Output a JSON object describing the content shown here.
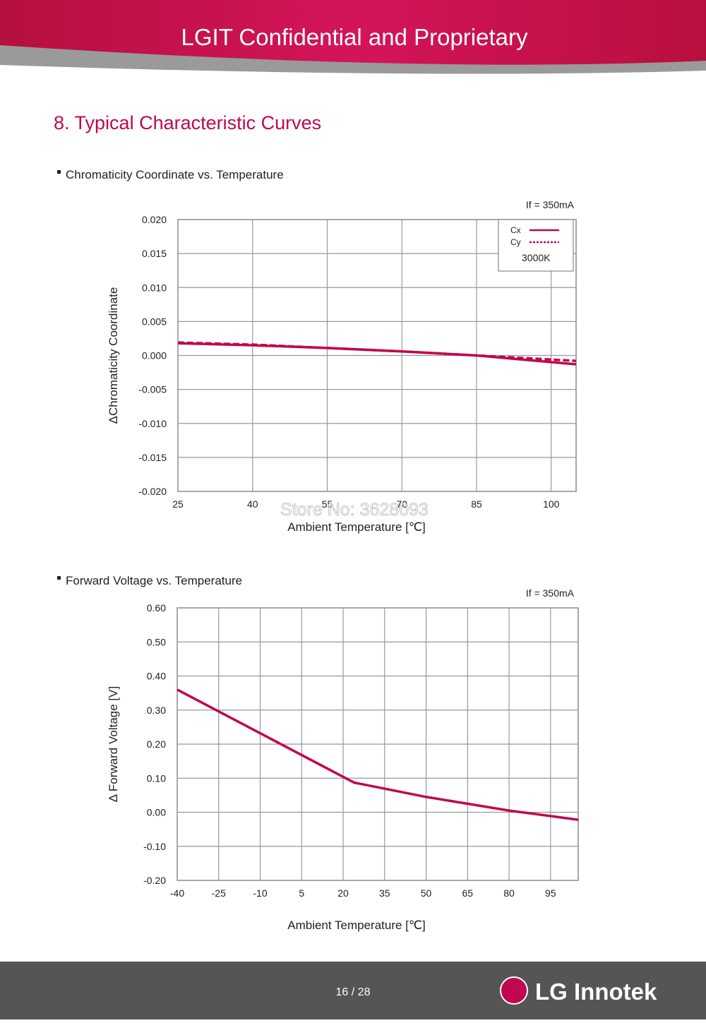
{
  "header": {
    "title": "LGIT Confidential and Proprietary"
  },
  "section_title": "8. Typical Characteristic Curves",
  "watermark": "Store No: 3628093",
  "footer": {
    "page": "16 / 28",
    "brand": "LG Innotek"
  },
  "chart_data": [
    {
      "type": "line",
      "subtitle": "Chromaticity Coordinate vs. Temperature",
      "annotation": "If = 350mA",
      "x_label": "Ambient Temperature [℃]",
      "y_label": "ΔChromaticity Coordinate",
      "x": [
        25,
        40,
        55,
        70,
        85,
        105
      ],
      "series": [
        {
          "name": "Cx",
          "color": "#c0074f",
          "line_style": "solid",
          "values": [
            0.0018,
            0.0015,
            0.0011,
            0.0006,
            0.0,
            -0.0013
          ]
        },
        {
          "name": "Cy",
          "color": "#c0074f",
          "line_style": "dashed",
          "values": [
            0.0019,
            0.0016,
            0.0011,
            0.0006,
            0.0,
            -0.0008
          ]
        }
      ],
      "legend": "top-right",
      "legend_note": "3000K",
      "xlim": [
        25,
        105
      ],
      "xticks": [
        25,
        40,
        55,
        70,
        85,
        100
      ],
      "ylim": [
        -0.02,
        0.02
      ],
      "yticks": [
        {
          "value": -0.02,
          "label": "-0.020"
        },
        {
          "value": -0.015,
          "label": "-0.015"
        },
        {
          "value": -0.01,
          "label": "-0.010"
        },
        {
          "value": -0.005,
          "label": "-0.005"
        },
        {
          "value": 0,
          "label": "0.000"
        },
        {
          "value": 0.005,
          "label": "0.005"
        },
        {
          "value": 0.01,
          "label": "0.010"
        },
        {
          "value": 0.015,
          "label": "0.015"
        },
        {
          "value": 0.02,
          "label": "0.020"
        }
      ],
      "grid": true
    },
    {
      "type": "line",
      "subtitle": "Forward Voltage vs. Temperature",
      "annotation": "If = 350mA",
      "x_label": "Ambient Temperature [℃]",
      "y_label": "Δ Forward Voltage [V]",
      "x": [
        -40,
        24,
        50,
        80,
        105
      ],
      "series": [
        {
          "color": "#c0074f",
          "line_style": "solid",
          "values": [
            0.36,
            0.087,
            0.045,
            0.005,
            -0.022
          ]
        }
      ],
      "xlim": [
        -40,
        105
      ],
      "xticks": [
        -40,
        -25,
        -10,
        5,
        20,
        35,
        50,
        65,
        80,
        95
      ],
      "ylim": [
        -0.2,
        0.6
      ],
      "yticks": [
        {
          "value": -0.2,
          "label": "-0.20"
        },
        {
          "value": -0.1,
          "label": "-0.10"
        },
        {
          "value": 0,
          "label": "0.00"
        },
        {
          "value": 0.1,
          "label": "0.10"
        },
        {
          "value": 0.2,
          "label": "0.20"
        },
        {
          "value": 0.3,
          "label": "0.30"
        },
        {
          "value": 0.4,
          "label": "0.40"
        },
        {
          "value": 0.5,
          "label": "0.50"
        },
        {
          "value": 0.6,
          "label": "0.60"
        }
      ],
      "grid": true
    }
  ]
}
